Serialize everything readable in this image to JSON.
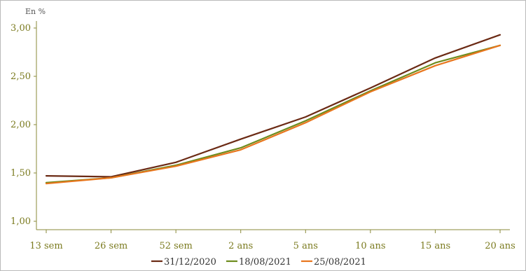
{
  "chart_data": {
    "type": "line",
    "unit_label": "En %",
    "categories": [
      "13 sem",
      "26 sem",
      "52 sem",
      "2 ans",
      "5 ans",
      "10 ans",
      "15 ans",
      "20 ans"
    ],
    "y_ticks": [
      "1,00",
      "1,50",
      "2,00",
      "2,50",
      "3,00"
    ],
    "y_tick_values": [
      1.0,
      1.5,
      2.0,
      2.5,
      3.0
    ],
    "ylim": [
      0.93,
      3.08
    ],
    "grid": false,
    "legend_position": "bottom",
    "series": [
      {
        "name": "31/12/2020",
        "color": "#6b2a14",
        "values": [
          1.47,
          1.46,
          1.61,
          1.85,
          2.08,
          2.38,
          2.69,
          2.93
        ]
      },
      {
        "name": "18/08/2021",
        "color": "#6e8c1e",
        "values": [
          1.4,
          1.45,
          1.58,
          1.76,
          2.04,
          2.35,
          2.64,
          2.82
        ]
      },
      {
        "name": "25/08/2021",
        "color": "#e8761e",
        "values": [
          1.39,
          1.45,
          1.57,
          1.74,
          2.02,
          2.34,
          2.61,
          2.82
        ]
      }
    ]
  }
}
